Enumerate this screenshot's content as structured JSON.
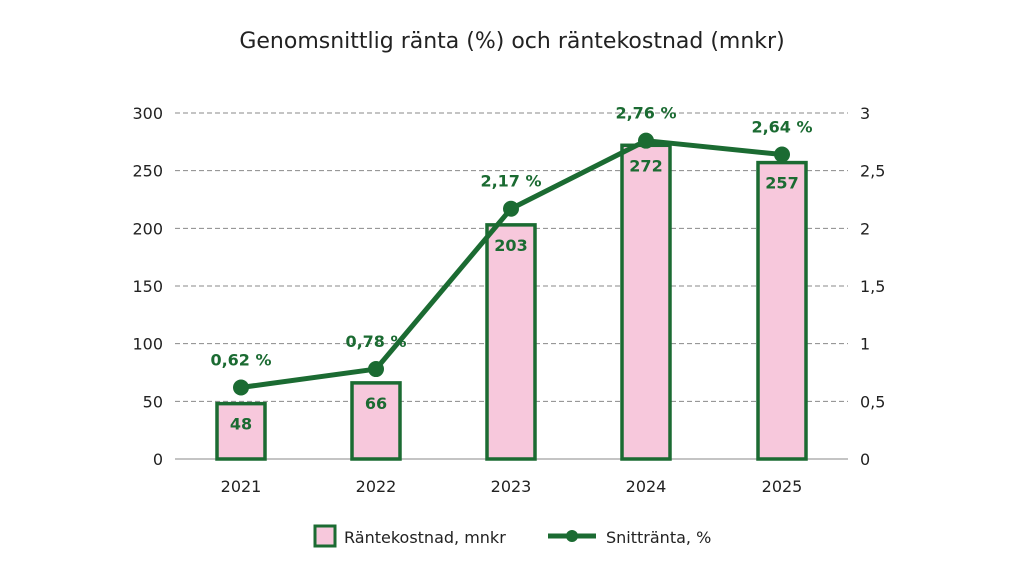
{
  "chart_data": {
    "type": "bar+line",
    "title": "Genomsnittlig ränta (%) och räntekostnad (mnkr)",
    "categories": [
      "2021",
      "2022",
      "2023",
      "2024",
      "2025"
    ],
    "series": [
      {
        "name": "Räntekostnad, mnkr",
        "type": "bar",
        "axis": "left",
        "values": [
          48,
          66,
          203,
          272,
          257
        ],
        "labels": [
          "48",
          "66",
          "203",
          "272",
          "257"
        ]
      },
      {
        "name": "Snittränta, %",
        "type": "line",
        "axis": "right",
        "values": [
          0.62,
          0.78,
          2.17,
          2.76,
          2.64
        ],
        "labels": [
          "0,62 %",
          "0,78 %",
          "2,17 %",
          "2,76 %",
          "2,64 %"
        ]
      }
    ],
    "y_left": {
      "range": [
        0,
        300
      ],
      "ticks": [
        "0",
        "50",
        "100",
        "150",
        "200",
        "250",
        "300"
      ]
    },
    "y_right": {
      "range": [
        0,
        3
      ],
      "ticks": [
        "0",
        "0,5",
        "1",
        "1,5",
        "2",
        "2,5",
        "3"
      ]
    },
    "grid": true,
    "legend": "bottom",
    "colors": {
      "green": "#1b6b32",
      "pink": "#f7c8dc",
      "grid": "#8a8a8a",
      "text": "#222222"
    }
  }
}
